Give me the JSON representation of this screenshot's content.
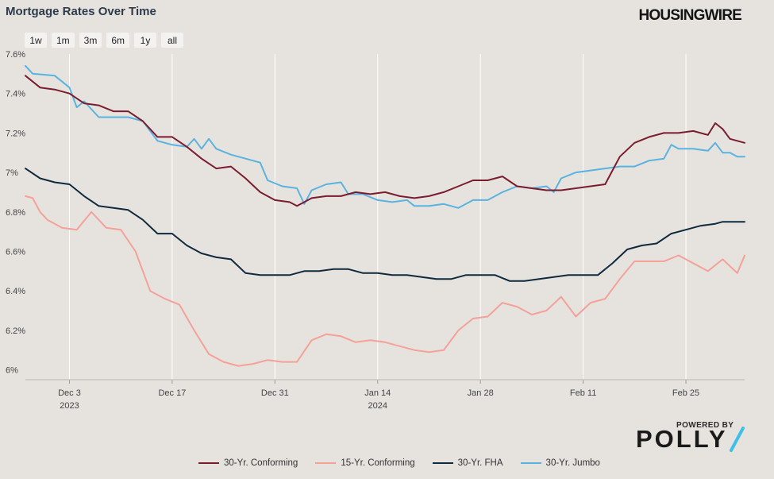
{
  "header": {
    "title": "Mortgage Rates Over Time",
    "brand": "HOUSINGWIRE"
  },
  "range_buttons": [
    "1w",
    "1m",
    "3m",
    "6m",
    "1y",
    "all"
  ],
  "footer": {
    "powered_by": "POWERED BY",
    "polly": "POLLY"
  },
  "colors": {
    "conforming30": "#7b1c2e",
    "conforming15": "#f4a198",
    "fha30": "#0f2a3d",
    "jumbo30": "#5ab3df",
    "background": "#e6e3df",
    "polly_accent": "#3fc0e6"
  },
  "chart_data": {
    "type": "line",
    "title": "Mortgage Rates Over Time",
    "x_range": [
      "2023-11-27",
      "2024-03-04"
    ],
    "ylim": [
      5.95,
      7.6
    ],
    "y_ticks": [
      6.0,
      6.2,
      6.4,
      6.6,
      6.8,
      7.0,
      7.2,
      7.4,
      7.6
    ],
    "y_tick_labels": [
      "6%",
      "6.2%",
      "6.4%",
      "6.6%",
      "6.8%",
      "7%",
      "7.2%",
      "7.4%",
      "7.6%"
    ],
    "x_ticks": [
      {
        "date": "2023-12-03",
        "label": "Dec 3",
        "sublabel": "2023"
      },
      {
        "date": "2023-12-17",
        "label": "Dec 17",
        "sublabel": ""
      },
      {
        "date": "2023-12-31",
        "label": "Dec 31",
        "sublabel": ""
      },
      {
        "date": "2024-01-14",
        "label": "Jan 14",
        "sublabel": "2024"
      },
      {
        "date": "2024-01-28",
        "label": "Jan 28",
        "sublabel": ""
      },
      {
        "date": "2024-02-11",
        "label": "Feb 11",
        "sublabel": ""
      },
      {
        "date": "2024-02-25",
        "label": "Feb 25",
        "sublabel": ""
      }
    ],
    "grid": "vertical",
    "legend_position": "bottom",
    "series": [
      {
        "name": "30-Yr. Conforming",
        "key": "conforming30",
        "points": [
          [
            "2023-11-27",
            7.49
          ],
          [
            "2023-11-29",
            7.43
          ],
          [
            "2023-12-01",
            7.42
          ],
          [
            "2023-12-03",
            7.4
          ],
          [
            "2023-12-05",
            7.35
          ],
          [
            "2023-12-07",
            7.34
          ],
          [
            "2023-12-09",
            7.31
          ],
          [
            "2023-12-11",
            7.31
          ],
          [
            "2023-12-13",
            7.26
          ],
          [
            "2023-12-15",
            7.18
          ],
          [
            "2023-12-17",
            7.18
          ],
          [
            "2023-12-19",
            7.13
          ],
          [
            "2023-12-21",
            7.07
          ],
          [
            "2023-12-23",
            7.02
          ],
          [
            "2023-12-25",
            7.03
          ],
          [
            "2023-12-27",
            6.97
          ],
          [
            "2023-12-29",
            6.9
          ],
          [
            "2023-12-31",
            6.86
          ],
          [
            "2024-01-02",
            6.85
          ],
          [
            "2024-01-03",
            6.83
          ],
          [
            "2024-01-05",
            6.87
          ],
          [
            "2024-01-07",
            6.88
          ],
          [
            "2024-01-09",
            6.88
          ],
          [
            "2024-01-11",
            6.9
          ],
          [
            "2024-01-13",
            6.89
          ],
          [
            "2024-01-15",
            6.9
          ],
          [
            "2024-01-17",
            6.88
          ],
          [
            "2024-01-19",
            6.87
          ],
          [
            "2024-01-21",
            6.88
          ],
          [
            "2024-01-23",
            6.9
          ],
          [
            "2024-01-25",
            6.93
          ],
          [
            "2024-01-27",
            6.96
          ],
          [
            "2024-01-29",
            6.96
          ],
          [
            "2024-01-31",
            6.98
          ],
          [
            "2024-02-02",
            6.93
          ],
          [
            "2024-02-04",
            6.92
          ],
          [
            "2024-02-06",
            6.91
          ],
          [
            "2024-02-08",
            6.91
          ],
          [
            "2024-02-10",
            6.92
          ],
          [
            "2024-02-12",
            6.93
          ],
          [
            "2024-02-14",
            6.94
          ],
          [
            "2024-02-16",
            7.08
          ],
          [
            "2024-02-18",
            7.15
          ],
          [
            "2024-02-20",
            7.18
          ],
          [
            "2024-02-22",
            7.2
          ],
          [
            "2024-02-24",
            7.2
          ],
          [
            "2024-02-26",
            7.21
          ],
          [
            "2024-02-28",
            7.19
          ],
          [
            "2024-02-29",
            7.25
          ],
          [
            "2024-03-01",
            7.22
          ],
          [
            "2024-03-02",
            7.17
          ],
          [
            "2024-03-04",
            7.15
          ]
        ]
      },
      {
        "name": "15-Yr. Conforming",
        "key": "conforming15",
        "points": [
          [
            "2023-11-27",
            6.88
          ],
          [
            "2023-11-28",
            6.87
          ],
          [
            "2023-11-29",
            6.8
          ],
          [
            "2023-11-30",
            6.76
          ],
          [
            "2023-12-02",
            6.72
          ],
          [
            "2023-12-04",
            6.71
          ],
          [
            "2023-12-06",
            6.8
          ],
          [
            "2023-12-08",
            6.72
          ],
          [
            "2023-12-10",
            6.71
          ],
          [
            "2023-12-12",
            6.6
          ],
          [
            "2023-12-14",
            6.4
          ],
          [
            "2023-12-16",
            6.36
          ],
          [
            "2023-12-18",
            6.33
          ],
          [
            "2023-12-20",
            6.2
          ],
          [
            "2023-12-22",
            6.08
          ],
          [
            "2023-12-24",
            6.04
          ],
          [
            "2023-12-26",
            6.02
          ],
          [
            "2023-12-28",
            6.03
          ],
          [
            "2023-12-30",
            6.05
          ],
          [
            "2024-01-01",
            6.04
          ],
          [
            "2024-01-03",
            6.04
          ],
          [
            "2024-01-05",
            6.15
          ],
          [
            "2024-01-07",
            6.18
          ],
          [
            "2024-01-09",
            6.17
          ],
          [
            "2024-01-11",
            6.14
          ],
          [
            "2024-01-13",
            6.15
          ],
          [
            "2024-01-15",
            6.14
          ],
          [
            "2024-01-17",
            6.12
          ],
          [
            "2024-01-19",
            6.1
          ],
          [
            "2024-01-21",
            6.09
          ],
          [
            "2024-01-23",
            6.1
          ],
          [
            "2024-01-25",
            6.2
          ],
          [
            "2024-01-27",
            6.26
          ],
          [
            "2024-01-29",
            6.27
          ],
          [
            "2024-01-31",
            6.34
          ],
          [
            "2024-02-02",
            6.32
          ],
          [
            "2024-02-04",
            6.28
          ],
          [
            "2024-02-06",
            6.3
          ],
          [
            "2024-02-08",
            6.37
          ],
          [
            "2024-02-10",
            6.27
          ],
          [
            "2024-02-12",
            6.34
          ],
          [
            "2024-02-14",
            6.36
          ],
          [
            "2024-02-16",
            6.46
          ],
          [
            "2024-02-18",
            6.55
          ],
          [
            "2024-02-20",
            6.55
          ],
          [
            "2024-02-22",
            6.55
          ],
          [
            "2024-02-24",
            6.58
          ],
          [
            "2024-02-26",
            6.54
          ],
          [
            "2024-02-28",
            6.5
          ],
          [
            "2024-03-01",
            6.56
          ],
          [
            "2024-03-03",
            6.49
          ],
          [
            "2024-03-04",
            6.58
          ]
        ]
      },
      {
        "name": "30-Yr. FHA",
        "key": "fha30",
        "points": [
          [
            "2023-11-27",
            7.02
          ],
          [
            "2023-11-29",
            6.97
          ],
          [
            "2023-12-01",
            6.95
          ],
          [
            "2023-12-03",
            6.94
          ],
          [
            "2023-12-05",
            6.88
          ],
          [
            "2023-12-07",
            6.83
          ],
          [
            "2023-12-09",
            6.82
          ],
          [
            "2023-12-11",
            6.81
          ],
          [
            "2023-12-13",
            6.76
          ],
          [
            "2023-12-15",
            6.69
          ],
          [
            "2023-12-17",
            6.69
          ],
          [
            "2023-12-19",
            6.63
          ],
          [
            "2023-12-21",
            6.59
          ],
          [
            "2023-12-23",
            6.57
          ],
          [
            "2023-12-25",
            6.56
          ],
          [
            "2023-12-27",
            6.49
          ],
          [
            "2023-12-29",
            6.48
          ],
          [
            "2023-12-31",
            6.48
          ],
          [
            "2024-01-02",
            6.48
          ],
          [
            "2024-01-04",
            6.5
          ],
          [
            "2024-01-06",
            6.5
          ],
          [
            "2024-01-08",
            6.51
          ],
          [
            "2024-01-10",
            6.51
          ],
          [
            "2024-01-12",
            6.49
          ],
          [
            "2024-01-14",
            6.49
          ],
          [
            "2024-01-16",
            6.48
          ],
          [
            "2024-01-18",
            6.48
          ],
          [
            "2024-01-20",
            6.47
          ],
          [
            "2024-01-22",
            6.46
          ],
          [
            "2024-01-24",
            6.46
          ],
          [
            "2024-01-26",
            6.48
          ],
          [
            "2024-01-28",
            6.48
          ],
          [
            "2024-01-30",
            6.48
          ],
          [
            "2024-02-01",
            6.45
          ],
          [
            "2024-02-03",
            6.45
          ],
          [
            "2024-02-05",
            6.46
          ],
          [
            "2024-02-07",
            6.47
          ],
          [
            "2024-02-09",
            6.48
          ],
          [
            "2024-02-11",
            6.48
          ],
          [
            "2024-02-13",
            6.48
          ],
          [
            "2024-02-15",
            6.54
          ],
          [
            "2024-02-17",
            6.61
          ],
          [
            "2024-02-19",
            6.63
          ],
          [
            "2024-02-21",
            6.64
          ],
          [
            "2024-02-23",
            6.69
          ],
          [
            "2024-02-25",
            6.71
          ],
          [
            "2024-02-27",
            6.73
          ],
          [
            "2024-02-29",
            6.74
          ],
          [
            "2024-03-01",
            6.75
          ],
          [
            "2024-03-04",
            6.75
          ]
        ]
      },
      {
        "name": "30-Yr. Jumbo",
        "key": "jumbo30",
        "points": [
          [
            "2023-11-27",
            7.54
          ],
          [
            "2023-11-28",
            7.5
          ],
          [
            "2023-12-01",
            7.49
          ],
          [
            "2023-12-03",
            7.43
          ],
          [
            "2023-12-04",
            7.33
          ],
          [
            "2023-12-05",
            7.36
          ],
          [
            "2023-12-07",
            7.28
          ],
          [
            "2023-12-09",
            7.28
          ],
          [
            "2023-12-11",
            7.28
          ],
          [
            "2023-12-13",
            7.26
          ],
          [
            "2023-12-15",
            7.16
          ],
          [
            "2023-12-17",
            7.14
          ],
          [
            "2023-12-19",
            7.13
          ],
          [
            "2023-12-20",
            7.17
          ],
          [
            "2023-12-21",
            7.12
          ],
          [
            "2023-12-22",
            7.17
          ],
          [
            "2023-12-23",
            7.12
          ],
          [
            "2023-12-25",
            7.09
          ],
          [
            "2023-12-27",
            7.07
          ],
          [
            "2023-12-29",
            7.05
          ],
          [
            "2023-12-30",
            6.96
          ],
          [
            "2024-01-01",
            6.93
          ],
          [
            "2024-01-03",
            6.92
          ],
          [
            "2024-01-04",
            6.84
          ],
          [
            "2024-01-05",
            6.91
          ],
          [
            "2024-01-07",
            6.94
          ],
          [
            "2024-01-09",
            6.95
          ],
          [
            "2024-01-10",
            6.89
          ],
          [
            "2024-01-12",
            6.89
          ],
          [
            "2024-01-14",
            6.86
          ],
          [
            "2024-01-16",
            6.85
          ],
          [
            "2024-01-18",
            6.86
          ],
          [
            "2024-01-19",
            6.83
          ],
          [
            "2024-01-21",
            6.83
          ],
          [
            "2024-01-23",
            6.84
          ],
          [
            "2024-01-25",
            6.82
          ],
          [
            "2024-01-27",
            6.86
          ],
          [
            "2024-01-29",
            6.86
          ],
          [
            "2024-01-31",
            6.9
          ],
          [
            "2024-02-02",
            6.93
          ],
          [
            "2024-02-04",
            6.92
          ],
          [
            "2024-02-06",
            6.93
          ],
          [
            "2024-02-07",
            6.9
          ],
          [
            "2024-02-08",
            6.97
          ],
          [
            "2024-02-10",
            7.0
          ],
          [
            "2024-02-12",
            7.01
          ],
          [
            "2024-02-14",
            7.02
          ],
          [
            "2024-02-16",
            7.03
          ],
          [
            "2024-02-18",
            7.03
          ],
          [
            "2024-02-20",
            7.06
          ],
          [
            "2024-02-22",
            7.07
          ],
          [
            "2024-02-23",
            7.14
          ],
          [
            "2024-02-24",
            7.12
          ],
          [
            "2024-02-26",
            7.12
          ],
          [
            "2024-02-28",
            7.11
          ],
          [
            "2024-02-29",
            7.15
          ],
          [
            "2024-03-01",
            7.1
          ],
          [
            "2024-03-02",
            7.1
          ],
          [
            "2024-03-03",
            7.08
          ],
          [
            "2024-03-04",
            7.08
          ]
        ]
      }
    ]
  }
}
